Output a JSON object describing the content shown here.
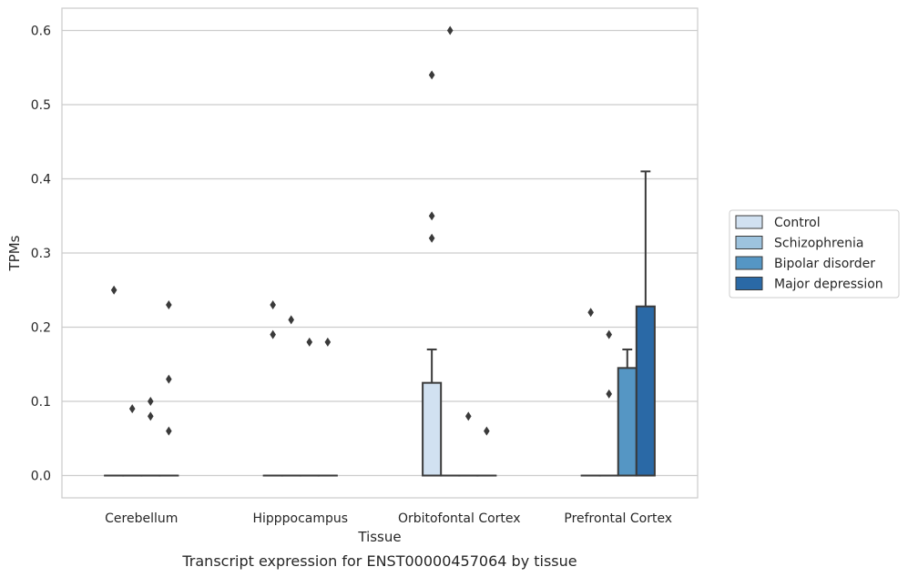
{
  "chart_data": {
    "type": "box",
    "title": "",
    "caption": "Transcript expression for ENST00000457064 by tissue",
    "xlabel": "Tissue",
    "ylabel": "TPMs",
    "ylim": [
      -0.03,
      0.63
    ],
    "yticks": [
      "0.0",
      "0.1",
      "0.2",
      "0.3",
      "0.4",
      "0.5",
      "0.6"
    ],
    "ytick_values": [
      0.0,
      0.1,
      0.2,
      0.3,
      0.4,
      0.5,
      0.6
    ],
    "grid": "horizontal",
    "legend_placement": "right",
    "categories": [
      "Cerebellum",
      "Hipppocampus",
      "Orbitofontal Cortex",
      "Prefrontal Cortex"
    ],
    "series": [
      {
        "name": "Control",
        "color": "#d1e1f1",
        "boxes": [
          {
            "q1": 0.0,
            "median": 0.0,
            "q3": 0.0,
            "whisker_low": 0.0,
            "whisker_high": 0.0,
            "outliers": [
              0.25
            ]
          },
          {
            "q1": 0.0,
            "median": 0.0,
            "q3": 0.0,
            "whisker_low": 0.0,
            "whisker_high": 0.0,
            "outliers": [
              0.23,
              0.19
            ]
          },
          {
            "q1": 0.0,
            "median": 0.0,
            "q3": 0.125,
            "whisker_low": 0.0,
            "whisker_high": 0.17,
            "outliers": [
              0.54,
              0.35,
              0.32
            ]
          },
          {
            "q1": 0.0,
            "median": 0.0,
            "q3": 0.0,
            "whisker_low": 0.0,
            "whisker_high": 0.0,
            "outliers": [
              0.22
            ]
          }
        ]
      },
      {
        "name": "Schizophrenia",
        "color": "#9dc3de",
        "boxes": [
          {
            "q1": 0.0,
            "median": 0.0,
            "q3": 0.0,
            "whisker_low": 0.0,
            "whisker_high": 0.0,
            "outliers": [
              0.09
            ]
          },
          {
            "q1": 0.0,
            "median": 0.0,
            "q3": 0.0,
            "whisker_low": 0.0,
            "whisker_high": 0.0,
            "outliers": [
              0.21
            ]
          },
          {
            "q1": 0.0,
            "median": 0.0,
            "q3": 0.0,
            "whisker_low": 0.0,
            "whisker_high": 0.0,
            "outliers": [
              0.6
            ]
          },
          {
            "q1": 0.0,
            "median": 0.0,
            "q3": 0.0,
            "whisker_low": 0.0,
            "whisker_high": 0.0,
            "outliers": [
              0.19,
              0.11
            ]
          }
        ]
      },
      {
        "name": "Bipolar disorder",
        "color": "#5596c4",
        "boxes": [
          {
            "q1": 0.0,
            "median": 0.0,
            "q3": 0.0,
            "whisker_low": 0.0,
            "whisker_high": 0.0,
            "outliers": [
              0.1,
              0.08
            ]
          },
          {
            "q1": 0.0,
            "median": 0.0,
            "q3": 0.0,
            "whisker_low": 0.0,
            "whisker_high": 0.0,
            "outliers": [
              0.18
            ]
          },
          {
            "q1": 0.0,
            "median": 0.0,
            "q3": 0.0,
            "whisker_low": 0.0,
            "whisker_high": 0.0,
            "outliers": [
              0.08
            ]
          },
          {
            "q1": 0.0,
            "median": 0.0,
            "q3": 0.145,
            "whisker_low": 0.0,
            "whisker_high": 0.17,
            "outliers": []
          }
        ]
      },
      {
        "name": "Major depression",
        "color": "#2a69a6",
        "boxes": [
          {
            "q1": 0.0,
            "median": 0.0,
            "q3": 0.0,
            "whisker_low": 0.0,
            "whisker_high": 0.0,
            "outliers": [
              0.23,
              0.13,
              0.06
            ]
          },
          {
            "q1": 0.0,
            "median": 0.0,
            "q3": 0.0,
            "whisker_low": 0.0,
            "whisker_high": 0.0,
            "outliers": [
              0.18
            ]
          },
          {
            "q1": 0.0,
            "median": 0.0,
            "q3": 0.0,
            "whisker_low": 0.0,
            "whisker_high": 0.0,
            "outliers": [
              0.06
            ]
          },
          {
            "q1": 0.0,
            "median": 0.0,
            "q3": 0.228,
            "whisker_low": 0.0,
            "whisker_high": 0.41,
            "outliers": []
          }
        ]
      }
    ]
  },
  "colors": {
    "grid": "#cccccc",
    "spine": "#cccccc",
    "edge": "#3a3a3a",
    "text": "#262626",
    "background": "#ffffff"
  }
}
